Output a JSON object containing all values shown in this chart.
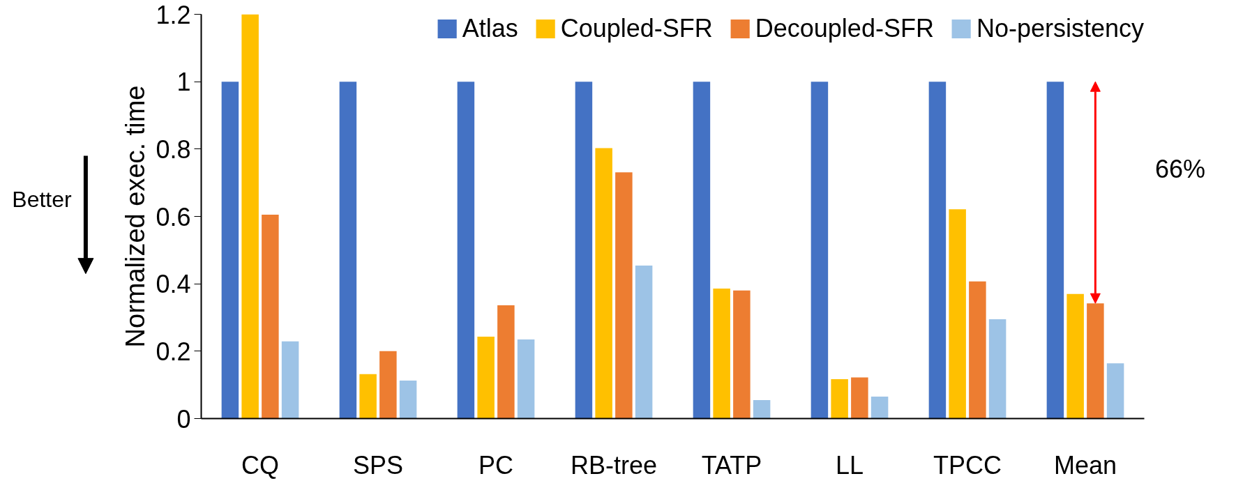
{
  "chart_data": {
    "type": "bar",
    "ylabel": "Normalized exec. time",
    "categories": [
      "CQ",
      "SPS",
      "PC",
      "RB-tree",
      "TATP",
      "LL",
      "TPCC",
      "Mean"
    ],
    "series": [
      {
        "name": "Atlas",
        "color": "#4472c4",
        "values": [
          1,
          1,
          1,
          1,
          1,
          1,
          1,
          1
        ]
      },
      {
        "name": "Coupled-SFR",
        "color": "#ffc000",
        "values": [
          1.2,
          0.132,
          0.243,
          0.803,
          0.386,
          0.117,
          0.621,
          0.37
        ]
      },
      {
        "name": "Decoupled-SFR",
        "color": "#ed7d31",
        "values": [
          0.605,
          0.2,
          0.336,
          0.731,
          0.38,
          0.122,
          0.407,
          0.342
        ]
      },
      {
        "name": "No-persistency",
        "color": "#9dc3e6",
        "values": [
          0.229,
          0.113,
          0.235,
          0.454,
          0.055,
          0.065,
          0.295,
          0.164
        ]
      }
    ],
    "ylim": [
      0,
      1.2
    ],
    "yticks": [
      0,
      0.2,
      0.4,
      0.6,
      0.8,
      1,
      1.2
    ],
    "grid": false,
    "legend": "top right",
    "annotations": [
      "Better",
      "66%"
    ]
  }
}
